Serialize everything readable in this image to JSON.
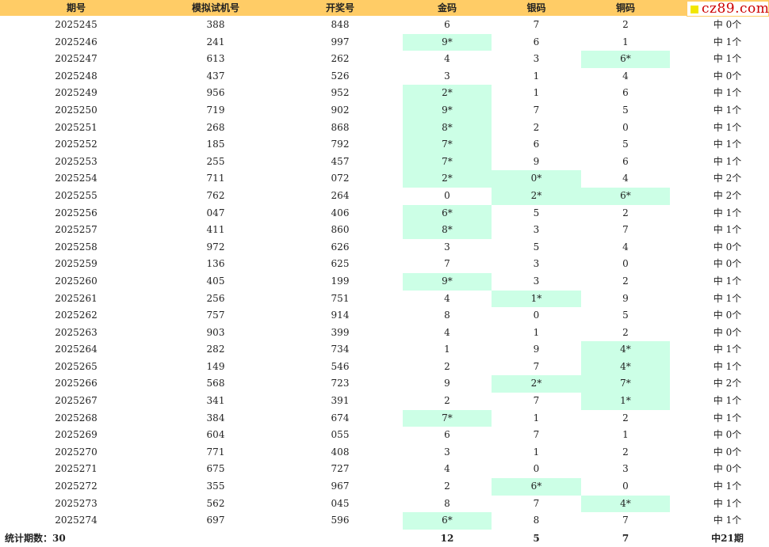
{
  "header": {
    "period": "期号",
    "test_number": "模拟试机号",
    "draw_number": "开奖号",
    "gold": "金码",
    "silver": "银码",
    "bronze": "铜码"
  },
  "logo": {
    "text": "cz89.com",
    "accent_color": "#cc0000",
    "square_color": "#f2e600"
  },
  "colors": {
    "header_bg": "#ffcc66",
    "hit_bg": "#ccffe6"
  },
  "rows": [
    {
      "period": "2025245",
      "test": "388",
      "draw": "848",
      "gold": "6",
      "silver": "7",
      "bronze": "2",
      "result": "中 0个",
      "hits": [
        false,
        false,
        false
      ]
    },
    {
      "period": "2025246",
      "test": "241",
      "draw": "997",
      "gold": "9*",
      "silver": "6",
      "bronze": "1",
      "result": "中 1个",
      "hits": [
        true,
        false,
        false
      ]
    },
    {
      "period": "2025247",
      "test": "613",
      "draw": "262",
      "gold": "4",
      "silver": "3",
      "bronze": "6*",
      "result": "中 1个",
      "hits": [
        false,
        false,
        true
      ]
    },
    {
      "period": "2025248",
      "test": "437",
      "draw": "526",
      "gold": "3",
      "silver": "1",
      "bronze": "4",
      "result": "中 0个",
      "hits": [
        false,
        false,
        false
      ]
    },
    {
      "period": "2025249",
      "test": "956",
      "draw": "952",
      "gold": "2*",
      "silver": "1",
      "bronze": "6",
      "result": "中 1个",
      "hits": [
        true,
        false,
        false
      ]
    },
    {
      "period": "2025250",
      "test": "719",
      "draw": "902",
      "gold": "9*",
      "silver": "7",
      "bronze": "5",
      "result": "中 1个",
      "hits": [
        true,
        false,
        false
      ]
    },
    {
      "period": "2025251",
      "test": "268",
      "draw": "868",
      "gold": "8*",
      "silver": "2",
      "bronze": "0",
      "result": "中 1个",
      "hits": [
        true,
        false,
        false
      ]
    },
    {
      "period": "2025252",
      "test": "185",
      "draw": "792",
      "gold": "7*",
      "silver": "6",
      "bronze": "5",
      "result": "中 1个",
      "hits": [
        true,
        false,
        false
      ]
    },
    {
      "period": "2025253",
      "test": "255",
      "draw": "457",
      "gold": "7*",
      "silver": "9",
      "bronze": "6",
      "result": "中 1个",
      "hits": [
        true,
        false,
        false
      ]
    },
    {
      "period": "2025254",
      "test": "711",
      "draw": "072",
      "gold": "2*",
      "silver": "0*",
      "bronze": "4",
      "result": "中 2个",
      "hits": [
        true,
        true,
        false
      ]
    },
    {
      "period": "2025255",
      "test": "762",
      "draw": "264",
      "gold": "0",
      "silver": "2*",
      "bronze": "6*",
      "result": "中 2个",
      "hits": [
        false,
        true,
        true
      ]
    },
    {
      "period": "2025256",
      "test": "047",
      "draw": "406",
      "gold": "6*",
      "silver": "5",
      "bronze": "2",
      "result": "中 1个",
      "hits": [
        true,
        false,
        false
      ]
    },
    {
      "period": "2025257",
      "test": "411",
      "draw": "860",
      "gold": "8*",
      "silver": "3",
      "bronze": "7",
      "result": "中 1个",
      "hits": [
        true,
        false,
        false
      ]
    },
    {
      "period": "2025258",
      "test": "972",
      "draw": "626",
      "gold": "3",
      "silver": "5",
      "bronze": "4",
      "result": "中 0个",
      "hits": [
        false,
        false,
        false
      ]
    },
    {
      "period": "2025259",
      "test": "136",
      "draw": "625",
      "gold": "7",
      "silver": "3",
      "bronze": "0",
      "result": "中 0个",
      "hits": [
        false,
        false,
        false
      ]
    },
    {
      "period": "2025260",
      "test": "405",
      "draw": "199",
      "gold": "9*",
      "silver": "3",
      "bronze": "2",
      "result": "中 1个",
      "hits": [
        true,
        false,
        false
      ]
    },
    {
      "period": "2025261",
      "test": "256",
      "draw": "751",
      "gold": "4",
      "silver": "1*",
      "bronze": "9",
      "result": "中 1个",
      "hits": [
        false,
        true,
        false
      ]
    },
    {
      "period": "2025262",
      "test": "757",
      "draw": "914",
      "gold": "8",
      "silver": "0",
      "bronze": "5",
      "result": "中 0个",
      "hits": [
        false,
        false,
        false
      ]
    },
    {
      "period": "2025263",
      "test": "903",
      "draw": "399",
      "gold": "4",
      "silver": "1",
      "bronze": "2",
      "result": "中 0个",
      "hits": [
        false,
        false,
        false
      ]
    },
    {
      "period": "2025264",
      "test": "282",
      "draw": "734",
      "gold": "1",
      "silver": "9",
      "bronze": "4*",
      "result": "中 1个",
      "hits": [
        false,
        false,
        true
      ]
    },
    {
      "period": "2025265",
      "test": "149",
      "draw": "546",
      "gold": "2",
      "silver": "7",
      "bronze": "4*",
      "result": "中 1个",
      "hits": [
        false,
        false,
        true
      ]
    },
    {
      "period": "2025266",
      "test": "568",
      "draw": "723",
      "gold": "9",
      "silver": "2*",
      "bronze": "7*",
      "result": "中 2个",
      "hits": [
        false,
        true,
        true
      ]
    },
    {
      "period": "2025267",
      "test": "341",
      "draw": "391",
      "gold": "2",
      "silver": "7",
      "bronze": "1*",
      "result": "中 1个",
      "hits": [
        false,
        false,
        true
      ]
    },
    {
      "period": "2025268",
      "test": "384",
      "draw": "674",
      "gold": "7*",
      "silver": "1",
      "bronze": "2",
      "result": "中 1个",
      "hits": [
        true,
        false,
        false
      ]
    },
    {
      "period": "2025269",
      "test": "604",
      "draw": "055",
      "gold": "6",
      "silver": "7",
      "bronze": "1",
      "result": "中 0个",
      "hits": [
        false,
        false,
        false
      ]
    },
    {
      "period": "2025270",
      "test": "771",
      "draw": "408",
      "gold": "3",
      "silver": "1",
      "bronze": "2",
      "result": "中 0个",
      "hits": [
        false,
        false,
        false
      ]
    },
    {
      "period": "2025271",
      "test": "675",
      "draw": "727",
      "gold": "4",
      "silver": "0",
      "bronze": "3",
      "result": "中 0个",
      "hits": [
        false,
        false,
        false
      ]
    },
    {
      "period": "2025272",
      "test": "355",
      "draw": "967",
      "gold": "2",
      "silver": "6*",
      "bronze": "0",
      "result": "中 1个",
      "hits": [
        false,
        true,
        false
      ]
    },
    {
      "period": "2025273",
      "test": "562",
      "draw": "045",
      "gold": "8",
      "silver": "7",
      "bronze": "4*",
      "result": "中 1个",
      "hits": [
        false,
        false,
        true
      ]
    },
    {
      "period": "2025274",
      "test": "697",
      "draw": "596",
      "gold": "6*",
      "silver": "8",
      "bronze": "7",
      "result": "中 1个",
      "hits": [
        true,
        false,
        false
      ]
    }
  ],
  "footer": {
    "label": "统计期数：30",
    "gold_total": "12",
    "silver_total": "5",
    "bronze_total": "7",
    "result_total": "中21期"
  }
}
